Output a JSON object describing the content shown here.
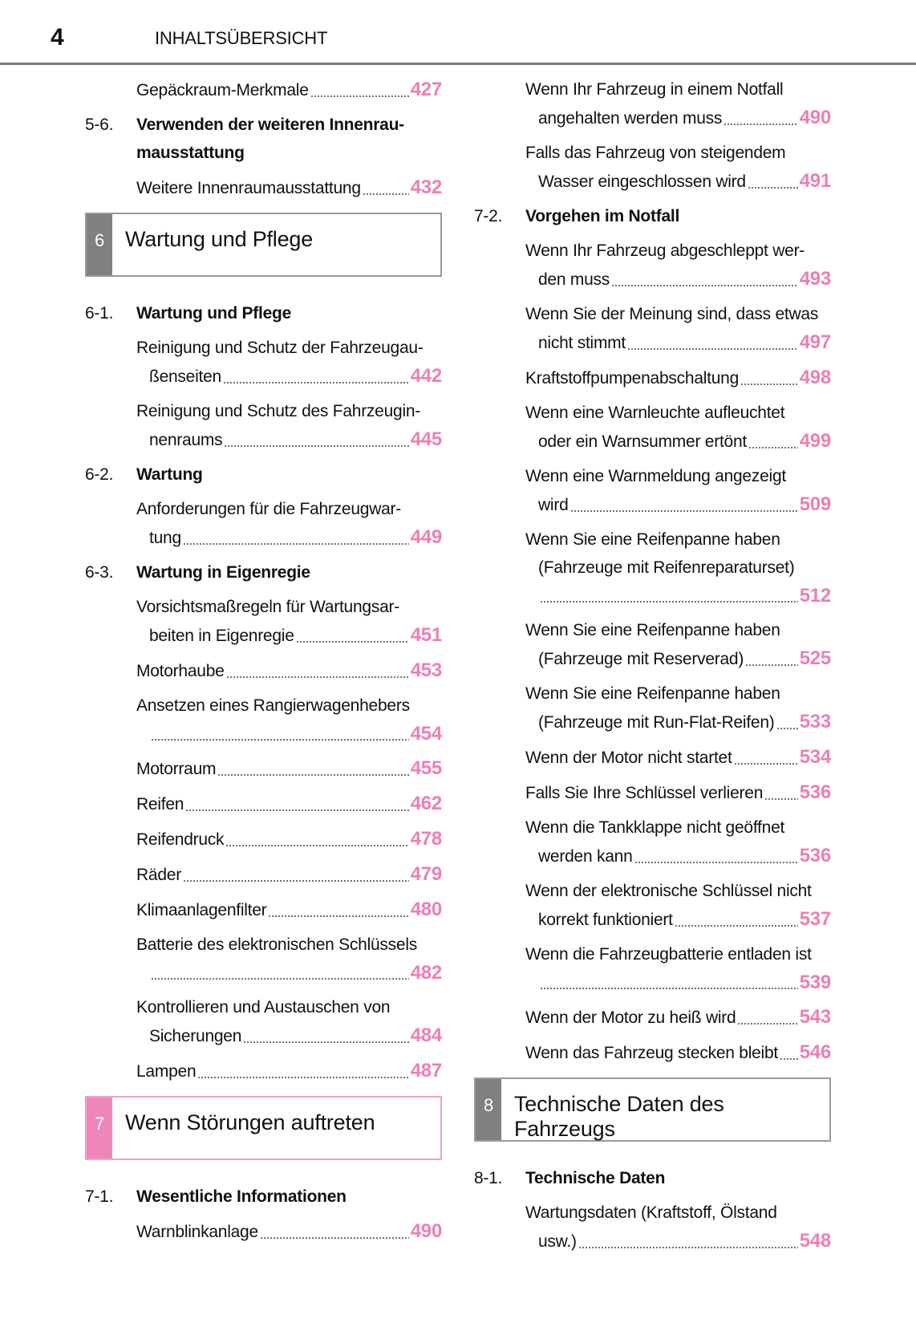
{
  "header": {
    "page_number": "4",
    "title": "INHALTSÜBERSICHT"
  },
  "colors": {
    "accent_pink": "#ec7fb4",
    "box_gray": "#808080",
    "box_pink": "#ee86b8"
  },
  "columns": [
    [
      {
        "type": "entry",
        "lines": [
          "Gepäckraum-Merkmale"
        ],
        "page": "427"
      },
      {
        "type": "heading",
        "num": "5-6.",
        "lines": [
          "Verwenden der weiteren Innenrau-",
          "mausstattung"
        ]
      },
      {
        "type": "entry",
        "lines": [
          "Weitere Innenraumausstattung"
        ],
        "page": "432"
      },
      {
        "type": "box",
        "num": "6",
        "title": "Wartung und Pflege",
        "color": "gray"
      },
      {
        "type": "heading",
        "num": "6-1.",
        "lines": [
          "Wartung und Pflege"
        ]
      },
      {
        "type": "entry",
        "lines": [
          "Reinigung und Schutz der Fahrzeugau-",
          "ßenseiten"
        ],
        "page": "442"
      },
      {
        "type": "entry",
        "lines": [
          "Reinigung und Schutz des Fahrzeugin-",
          "nenraums"
        ],
        "page": "445"
      },
      {
        "type": "heading",
        "num": "6-2.",
        "lines": [
          "Wartung"
        ]
      },
      {
        "type": "entry",
        "lines": [
          "Anforderungen für die Fahrzeugwar-",
          "tung"
        ],
        "page": "449"
      },
      {
        "type": "heading",
        "num": "6-3.",
        "lines": [
          "Wartung in Eigenregie"
        ]
      },
      {
        "type": "entry",
        "lines": [
          "Vorsichtsmaßregeln für Wartungsar-",
          "beiten in Eigenregie"
        ],
        "page": "451"
      },
      {
        "type": "entry",
        "lines": [
          "Motorhaube"
        ],
        "page": "453"
      },
      {
        "type": "entry",
        "lines": [
          "Ansetzen eines Rangierwagenhebers",
          ""
        ],
        "page": "454"
      },
      {
        "type": "entry",
        "lines": [
          "Motorraum"
        ],
        "page": "455"
      },
      {
        "type": "entry",
        "lines": [
          "Reifen"
        ],
        "page": "462"
      },
      {
        "type": "entry",
        "lines": [
          "Reifendruck"
        ],
        "page": "478"
      },
      {
        "type": "entry",
        "lines": [
          "Räder"
        ],
        "page": "479"
      },
      {
        "type": "entry",
        "lines": [
          "Klimaanlagenfilter"
        ],
        "page": "480"
      },
      {
        "type": "entry",
        "lines": [
          "Batterie des elektronischen Schlüssels",
          ""
        ],
        "page": "482"
      },
      {
        "type": "entry",
        "lines": [
          "Kontrollieren und Austauschen von",
          "Sicherungen"
        ],
        "page": "484"
      },
      {
        "type": "entry",
        "lines": [
          "Lampen"
        ],
        "page": "487"
      },
      {
        "type": "box",
        "num": "7",
        "title": "Wenn Störungen auftreten",
        "color": "pink"
      },
      {
        "type": "heading",
        "num": "7-1.",
        "lines": [
          "Wesentliche Informationen"
        ]
      },
      {
        "type": "entry",
        "lines": [
          "Warnblinkanlage"
        ],
        "page": "490"
      }
    ],
    [
      {
        "type": "entry",
        "lines": [
          "Wenn Ihr Fahrzeug in einem Notfall",
          "angehalten werden muss"
        ],
        "page": "490"
      },
      {
        "type": "entry",
        "lines": [
          "Falls das Fahrzeug von steigendem",
          "Wasser eingeschlossen wird"
        ],
        "page": "491"
      },
      {
        "type": "heading",
        "num": "7-2.",
        "lines": [
          "Vorgehen im Notfall"
        ]
      },
      {
        "type": "entry",
        "lines": [
          "Wenn Ihr Fahrzeug abgeschleppt wer-",
          "den muss"
        ],
        "page": "493"
      },
      {
        "type": "entry",
        "lines": [
          "Wenn Sie der Meinung sind, dass etwas",
          "nicht stimmt"
        ],
        "page": "497"
      },
      {
        "type": "entry",
        "lines": [
          "Kraftstoffpumpenabschaltung"
        ],
        "page": "498"
      },
      {
        "type": "entry",
        "lines": [
          "Wenn eine Warnleuchte aufleuchtet",
          "oder ein Warnsummer ertönt"
        ],
        "page": "499"
      },
      {
        "type": "entry",
        "lines": [
          "Wenn eine Warnmeldung angezeigt",
          "wird"
        ],
        "page": "509"
      },
      {
        "type": "entry",
        "lines": [
          "Wenn Sie eine Reifenpanne haben",
          "(Fahrzeuge mit Reifenreparaturset)",
          ""
        ],
        "page": "512"
      },
      {
        "type": "entry",
        "lines": [
          "Wenn Sie eine Reifenpanne haben",
          "(Fahrzeuge mit Reserverad)"
        ],
        "page": "525"
      },
      {
        "type": "entry",
        "lines": [
          "Wenn Sie eine Reifenpanne haben",
          "(Fahrzeuge mit Run-Flat-Reifen)"
        ],
        "page": "533"
      },
      {
        "type": "entry",
        "lines": [
          "Wenn der Motor nicht startet"
        ],
        "page": "534"
      },
      {
        "type": "entry",
        "lines": [
          "Falls Sie Ihre Schlüssel verlieren"
        ],
        "page": "536"
      },
      {
        "type": "entry",
        "lines": [
          "Wenn die Tankklappe nicht geöffnet",
          "werden kann"
        ],
        "page": "536"
      },
      {
        "type": "entry",
        "lines": [
          "Wenn der elektronische Schlüssel nicht",
          "korrekt funktioniert"
        ],
        "page": "537"
      },
      {
        "type": "entry",
        "lines": [
          "Wenn die Fahrzeugbatterie entladen ist",
          ""
        ],
        "page": "539"
      },
      {
        "type": "entry",
        "lines": [
          "Wenn der Motor zu heiß wird"
        ],
        "page": "543"
      },
      {
        "type": "entry",
        "lines": [
          "Wenn das Fahrzeug stecken bleibt"
        ],
        "page": "546"
      },
      {
        "type": "box",
        "num": "8",
        "title": "Technische Daten des Fahrzeugs",
        "color": "gray"
      },
      {
        "type": "heading",
        "num": "8-1.",
        "lines": [
          "Technische Daten"
        ]
      },
      {
        "type": "entry",
        "lines": [
          "Wartungsdaten (Kraftstoff, Ölstand",
          "usw.)"
        ],
        "page": "548"
      }
    ]
  ]
}
